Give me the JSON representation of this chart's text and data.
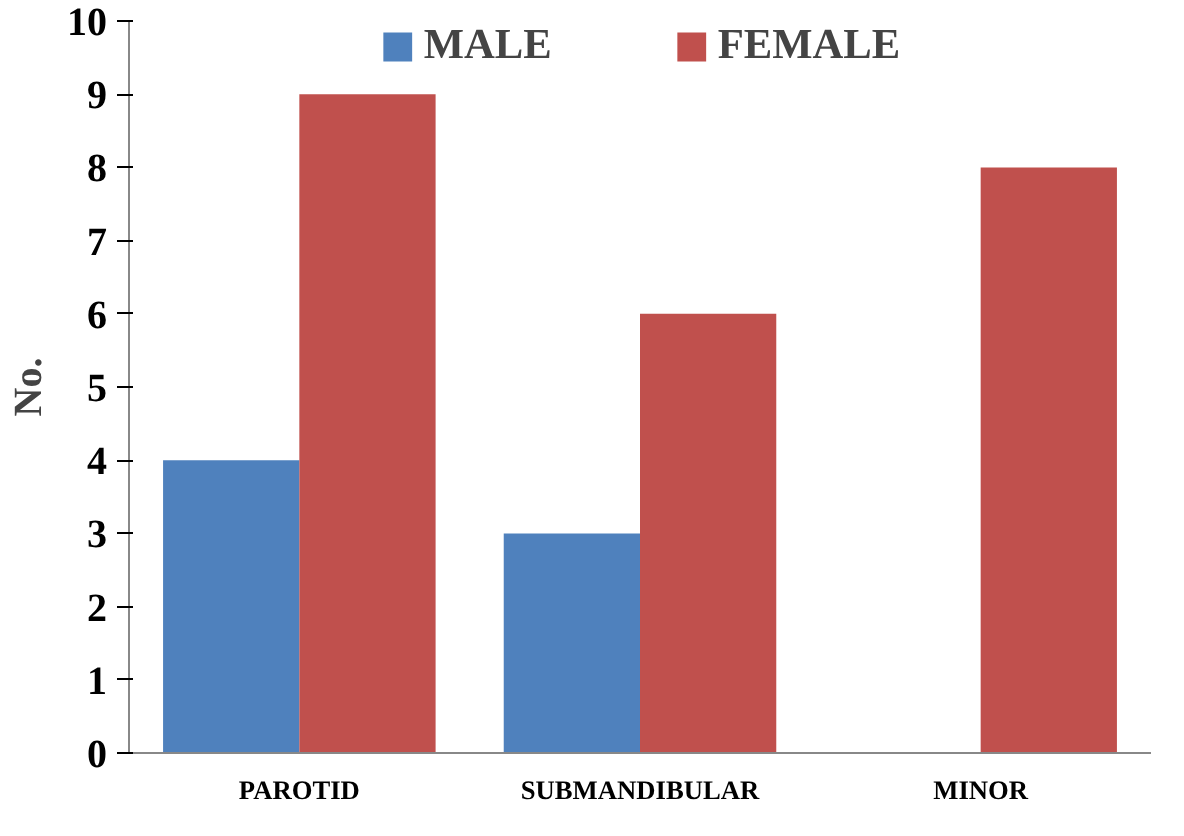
{
  "chart_data": {
    "type": "bar",
    "categories": [
      "PAROTID",
      "SUBMANDIBULAR",
      "MINOR"
    ],
    "ylabel": "No.",
    "series": [
      {
        "name": "MALE",
        "color": "#4f81bd",
        "values": [
          4,
          3,
          0
        ]
      },
      {
        "name": "FEMALE",
        "color": "#c0504d",
        "values": [
          9,
          6,
          8
        ]
      }
    ],
    "ylim": [
      0,
      10
    ],
    "yticks": [
      0,
      1,
      2,
      3,
      4,
      5,
      6,
      7,
      8,
      9,
      10
    ],
    "grid": false,
    "legend": "top"
  }
}
